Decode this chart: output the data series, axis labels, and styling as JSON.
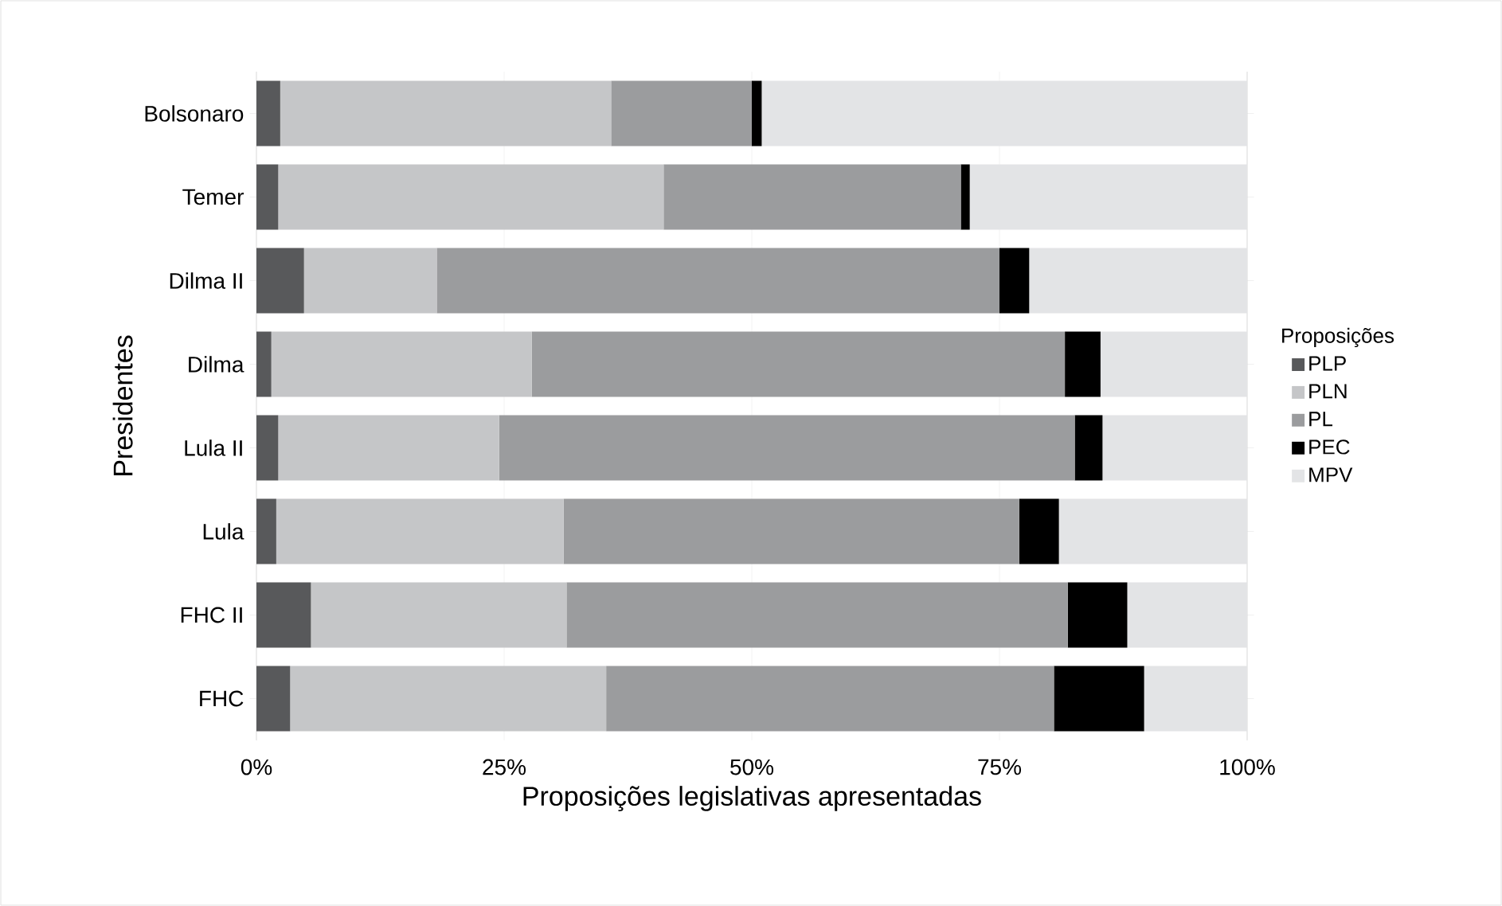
{
  "chart_data": {
    "type": "bar",
    "orientation": "horizontal",
    "stacked": true,
    "categories": [
      "Bolsonaro",
      "Temer",
      "Dilma II",
      "Dilma",
      "Lula II",
      "Lula",
      "FHC II",
      "FHC"
    ],
    "series": [
      {
        "name": "PLP",
        "color": "#58595b",
        "values": [
          2.4,
          2.2,
          4.8,
          1.5,
          2.2,
          2.0,
          5.5,
          3.4
        ]
      },
      {
        "name": "PLN",
        "color": "#c5c6c8",
        "values": [
          33.4,
          38.9,
          13.4,
          26.3,
          22.3,
          29.0,
          25.8,
          31.9
        ]
      },
      {
        "name": "PL",
        "color": "#9b9c9e",
        "values": [
          14.2,
          30.0,
          56.8,
          53.8,
          58.1,
          46.0,
          50.6,
          45.2
        ]
      },
      {
        "name": "PEC",
        "color": "#000000",
        "values": [
          1.0,
          0.9,
          3.0,
          3.6,
          2.8,
          4.0,
          6.0,
          9.1
        ]
      },
      {
        "name": "MPV",
        "color": "#e3e4e6",
        "values": [
          49.0,
          28.0,
          22.0,
          14.8,
          14.6,
          19.0,
          12.1,
          10.4
        ]
      }
    ],
    "xlim": [
      0,
      100
    ],
    "xticks": [
      {
        "value": 0,
        "label": "0%"
      },
      {
        "value": 25,
        "label": "25%"
      },
      {
        "value": 50,
        "label": "50%"
      },
      {
        "value": 75,
        "label": "75%"
      },
      {
        "value": 100,
        "label": "100%"
      }
    ],
    "xlabel": "Proposições legislativas apresentadas",
    "ylabel": "Presidentes",
    "legend_title": "Proposições",
    "legend": "right",
    "grid": "x"
  }
}
